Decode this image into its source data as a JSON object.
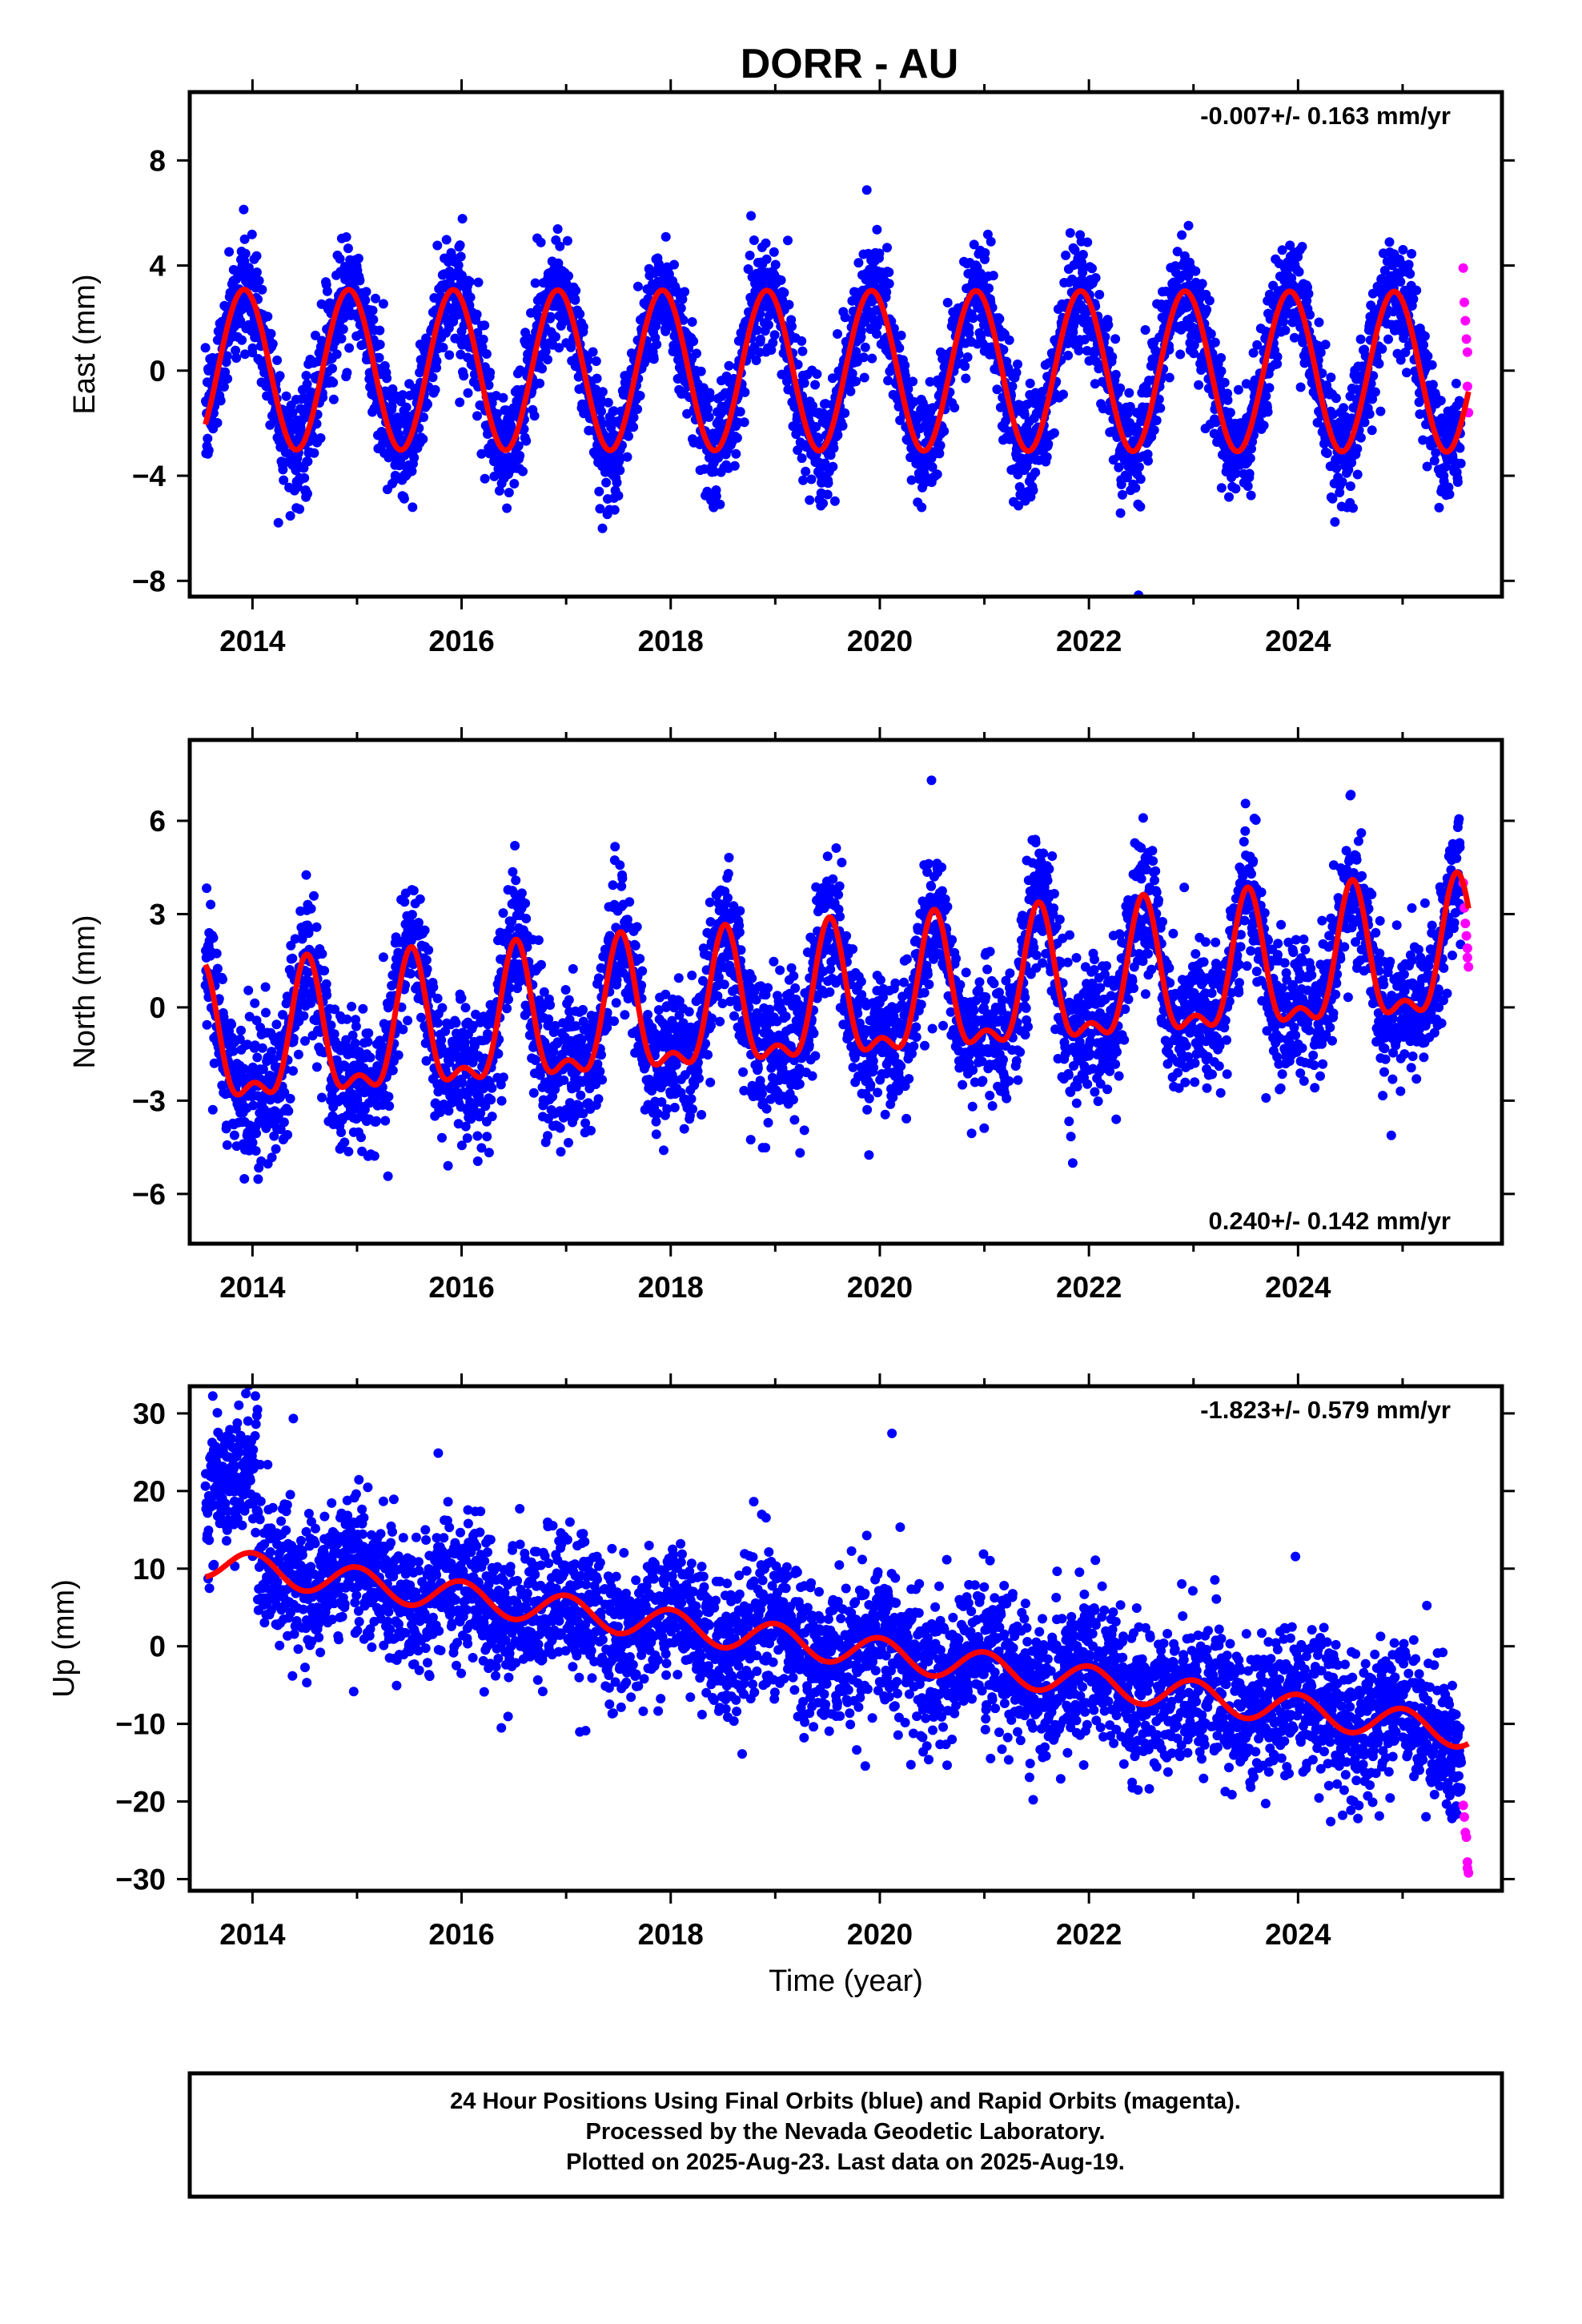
{
  "title": "DORR - AU",
  "caption": {
    "lines": [
      "24 Hour Positions Using Final Orbits (blue) and Rapid Orbits (magenta).",
      "Processed by the Nevada Geodetic Laboratory.",
      "Plotted on 2025-Aug-23. Last data on 2025-Aug-19."
    ]
  },
  "colors": {
    "final": "#0000ff",
    "rapid": "#ff00ff",
    "model": "#ff0000",
    "frame": "#000000"
  },
  "chart_data": [
    {
      "type": "scatter",
      "xlabel": "",
      "ylabel": "East (mm)",
      "xlim": [
        2013.4,
        2025.95
      ],
      "ylim": [
        -8.6,
        10.6
      ],
      "xticks": [
        2014,
        2016,
        2018,
        2020,
        2022,
        2024
      ],
      "yticks": [
        -8,
        -4,
        0,
        4,
        8
      ],
      "rate_text": "-0.007+/- 0.163 mm/yr",
      "rate_position": "top-right",
      "series": [
        {
          "role": "final",
          "x_range": [
            2013.55,
            2025.56
          ],
          "n": 4100,
          "trend": -0.007,
          "annual_amplitude": 3.05,
          "annual_peak": 0.92,
          "semiannual": 0.0,
          "noise": 1.05
        },
        {
          "role": "rapid",
          "x": [
            2025.58,
            2025.59,
            2025.6,
            2025.61,
            2025.62,
            2025.62,
            2025.63
          ],
          "y": [
            3.9,
            2.6,
            1.9,
            1.2,
            0.7,
            -0.6,
            -1.6
          ]
        }
      ],
      "model": {
        "x_range": [
          2013.55,
          2025.63
        ],
        "trend": -0.007,
        "annual_amplitude": 3.05,
        "annual_peak": 0.92,
        "semiannual": 0.0
      }
    },
    {
      "type": "scatter",
      "xlabel": "",
      "ylabel": "North (mm)",
      "xlim": [
        2013.4,
        2025.95
      ],
      "ylim": [
        -7.6,
        8.6
      ],
      "xticks": [
        2014,
        2016,
        2018,
        2020,
        2022,
        2024
      ],
      "yticks": [
        -6,
        -3,
        0,
        3,
        6
      ],
      "rate_text": "0.240+/- 0.142 mm/yr",
      "rate_position": "bottom-right",
      "series": [
        {
          "role": "final",
          "x_range": [
            2013.55,
            2025.56
          ],
          "n": 4100,
          "trend": 0.24,
          "annual_amplitude": 2.0,
          "annual_peak": 0.52,
          "semiannual": 0.9,
          "noise": 1.1
        },
        {
          "role": "rapid",
          "x": [
            2025.58,
            2025.59,
            2025.6,
            2025.61,
            2025.62,
            2025.62,
            2025.63
          ],
          "y": [
            4.0,
            3.2,
            2.7,
            2.3,
            1.9,
            1.6,
            1.3
          ]
        }
      ],
      "model": {
        "x_range": [
          2013.55,
          2025.63
        ],
        "trend": 0.24,
        "annual_amplitude": 2.0,
        "annual_peak": 0.52,
        "semiannual": 0.9
      }
    },
    {
      "type": "scatter",
      "xlabel": "Time (year)",
      "ylabel": "Up (mm)",
      "xlim": [
        2013.4,
        2025.95
      ],
      "ylim": [
        -31.5,
        33.5
      ],
      "xticks": [
        2014,
        2016,
        2018,
        2020,
        2022,
        2024
      ],
      "yticks": [
        -30,
        -20,
        -10,
        0,
        10,
        20,
        30
      ],
      "rate_text": "-1.823+/- 0.579 mm/yr",
      "rate_position": "top-right",
      "series": [
        {
          "role": "final",
          "x_range": [
            2013.55,
            2025.56
          ],
          "n": 4100,
          "trend": -1.823,
          "annual_amplitude": 2.0,
          "annual_peak": 0.0,
          "semiannual": 0.0,
          "noise": 4.5
        },
        {
          "role": "rapid",
          "x": [
            2025.58,
            2025.59,
            2025.6,
            2025.61,
            2025.62,
            2025.62,
            2025.63
          ],
          "y": [
            -20.5,
            -22.0,
            -24.0,
            -24.6,
            -27.8,
            -28.6,
            -29.2
          ]
        }
      ],
      "model": {
        "x_range": [
          2013.55,
          2025.63
        ],
        "trend": -1.823,
        "annual_amplitude": 2.0,
        "annual_peak": 0.0,
        "semiannual": 0.0
      }
    }
  ]
}
